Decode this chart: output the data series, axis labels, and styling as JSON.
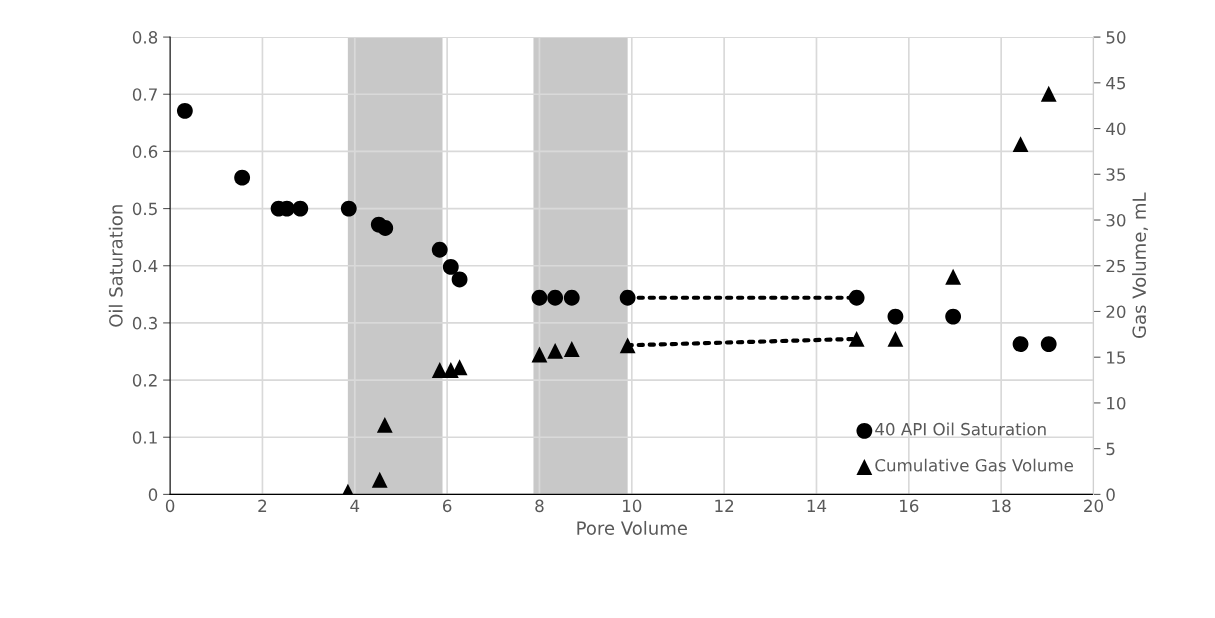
{
  "chart_data": {
    "type": "scatter",
    "xlabel": "Pore Volume",
    "ylabel": "Oil Saturation",
    "y2label": "Gas Volume, mL",
    "xlim": [
      0,
      20
    ],
    "xticks": [
      0,
      2,
      4,
      6,
      8,
      10,
      12,
      14,
      16,
      18,
      20
    ],
    "ylim": [
      0,
      0.8
    ],
    "yticks": [
      0,
      0.1,
      0.2,
      0.3,
      0.4,
      0.5,
      0.6,
      0.7,
      0.8
    ],
    "y2lim": [
      0,
      50
    ],
    "y2ticks": [
      0,
      5,
      10,
      15,
      20,
      25,
      30,
      35,
      40,
      45,
      50
    ],
    "grid": true,
    "legend": "bottom right",
    "bands": [
      {
        "axis": "x",
        "from": 3.85,
        "to": 5.9,
        "color": "#c8c8c8"
      },
      {
        "axis": "x",
        "from": 7.87,
        "to": 9.91,
        "color": "#c8c8c8"
      }
    ],
    "series": [
      {
        "name": "40 API Oil Saturation",
        "marker": "circle",
        "color": "#000000",
        "x": [
          0.32,
          1.56,
          2.35,
          2.53,
          2.82,
          3.87,
          4.52,
          4.66,
          5.84,
          6.08,
          6.27,
          8.0,
          8.34,
          8.7,
          9.91,
          14.87,
          15.71,
          16.96,
          18.42,
          19.03
        ],
        "values": [
          0.671,
          0.554,
          0.5,
          0.5,
          0.5,
          0.5,
          0.472,
          0.466,
          0.428,
          0.398,
          0.376,
          0.344,
          0.344,
          0.344,
          0.344,
          0.344,
          0.311,
          0.311,
          0.263,
          0.263
        ]
      },
      {
        "name": "Cumulative Gas Volume",
        "marker": "triangle",
        "axis": "y2",
        "color": "#000000",
        "x": [
          3.85,
          4.54,
          4.65,
          5.84,
          6.08,
          6.27,
          8.0,
          8.34,
          8.7,
          9.91,
          14.87,
          15.71,
          16.96,
          18.42,
          19.03
        ],
        "values": [
          0.3,
          1.6,
          7.6,
          13.6,
          13.6,
          13.9,
          15.3,
          15.7,
          15.9,
          16.3,
          17.0,
          17.0,
          23.8,
          38.3,
          43.8
        ]
      },
      {
        "type": "line",
        "line_style": "dotted",
        "color": "#000000",
        "x": [
          9.91,
          14.87
        ],
        "values": [
          0.344,
          0.344
        ]
      },
      {
        "type": "line",
        "line_style": "dotted",
        "axis": "y2",
        "color": "#000000",
        "x": [
          9.91,
          14.87
        ],
        "values": [
          16.3,
          17.0
        ]
      }
    ]
  }
}
